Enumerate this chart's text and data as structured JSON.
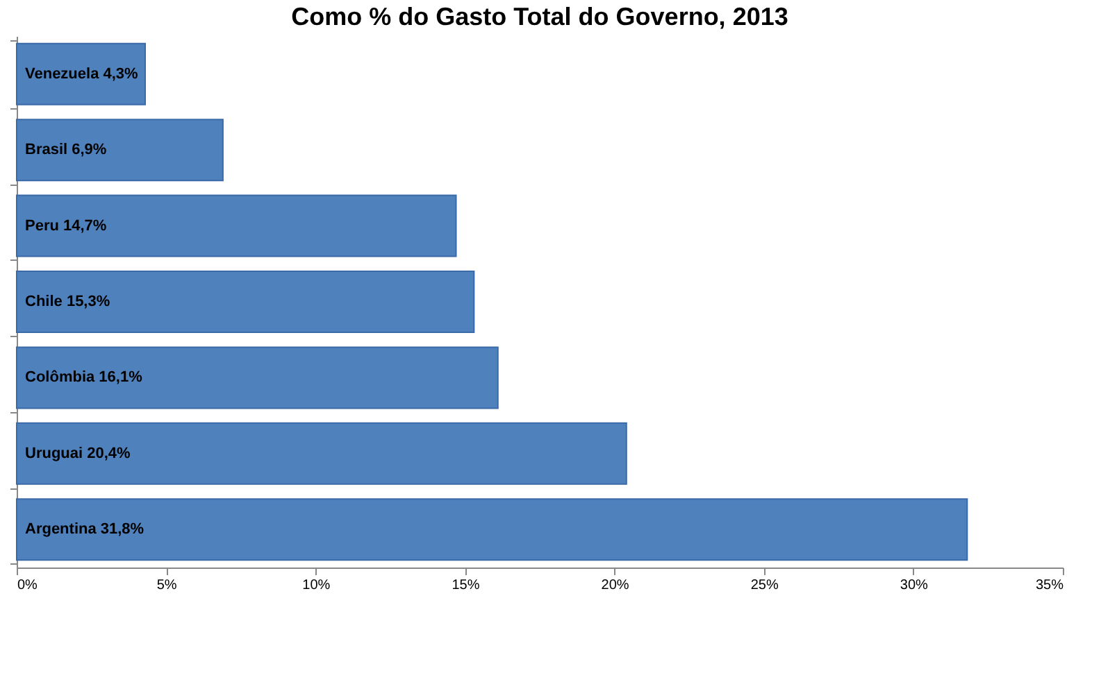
{
  "chart_data": {
    "type": "bar",
    "orientation": "horizontal",
    "title": "Como % do Gasto Total do Governo, 2013",
    "categories": [
      "Venezuela",
      "Brasil",
      "Peru",
      "Chile",
      "Colômbia",
      "Uruguai",
      "Argentina"
    ],
    "values": [
      4.3,
      6.9,
      14.7,
      15.3,
      16.1,
      20.4,
      31.8
    ],
    "value_labels": [
      "4,3%",
      "6,9%",
      "14,7%",
      "15,3%",
      "16,1%",
      "20,4%",
      "31,8%"
    ],
    "color": "#4f81bd",
    "xlim": [
      0,
      35
    ],
    "xticks": [
      {
        "value": 0,
        "label": "0%"
      },
      {
        "value": 5,
        "label": "5%"
      },
      {
        "value": 10,
        "label": "10%"
      },
      {
        "value": 15,
        "label": "15%"
      },
      {
        "value": 20,
        "label": "20%"
      },
      {
        "value": 25,
        "label": "25%"
      },
      {
        "value": 30,
        "label": "30%"
      },
      {
        "value": 35,
        "label": "35%"
      }
    ],
    "tick_labels": "x",
    "grid": false
  }
}
